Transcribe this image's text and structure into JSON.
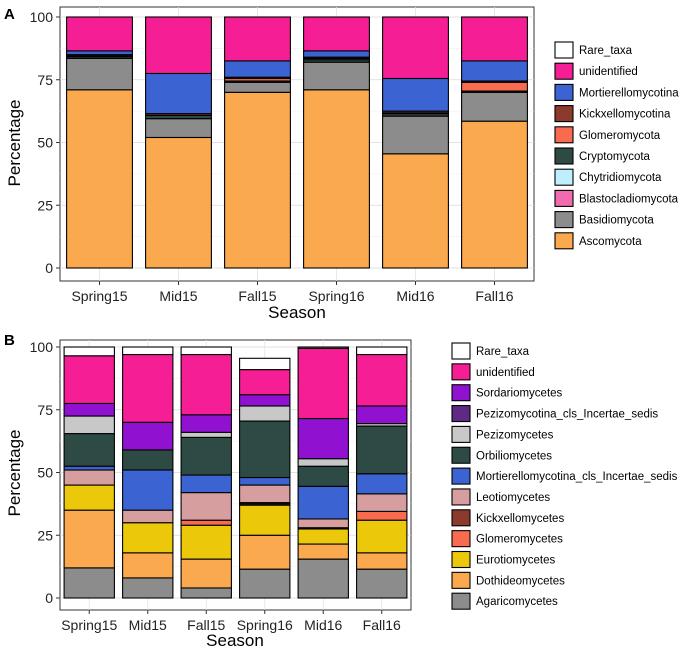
{
  "chart_data": [
    {
      "type": "bar",
      "stacked": true,
      "panel_label": "A",
      "title": "",
      "xlabel": "Season",
      "ylabel": "Percentage",
      "ylim": [
        0,
        100
      ],
      "yticks": [
        0,
        25,
        50,
        75,
        100
      ],
      "grid": true,
      "legend_position": "right",
      "categories": [
        "Spring15",
        "Mid15",
        "Fall15",
        "Spring16",
        "Mid16",
        "Fall16"
      ],
      "series": [
        {
          "name": "Ascomycota",
          "color": "#FBA94E",
          "values": [
            71,
            52,
            70,
            71,
            45.5,
            58.5
          ]
        },
        {
          "name": "Basidiomycota",
          "color": "#8C8C8C",
          "values": [
            12.5,
            7.5,
            4,
            11,
            15,
            11.5
          ]
        },
        {
          "name": "Blastocladiomycota",
          "color": "#F26BB1",
          "values": [
            0,
            0,
            0,
            0,
            0,
            0
          ]
        },
        {
          "name": "Chytridiomycota",
          "color": "#BFEFFF",
          "values": [
            0,
            0,
            0,
            0,
            0,
            0
          ]
        },
        {
          "name": "Cryptomycota",
          "color": "#2E4A45",
          "values": [
            0.7,
            1.3,
            0.5,
            1,
            1,
            0.5
          ]
        },
        {
          "name": "Glomeromycota",
          "color": "#F86B4E",
          "values": [
            0.3,
            0,
            1,
            0.5,
            0.3,
            3.5
          ]
        },
        {
          "name": "Kickxellomycotina",
          "color": "#8B3A2B",
          "values": [
            0.5,
            0.7,
            0.5,
            0.5,
            0.7,
            0.5
          ]
        },
        {
          "name": "Mortierellomycotina",
          "color": "#3B63D1",
          "values": [
            1.5,
            16,
            6.5,
            2.5,
            13,
            8
          ]
        },
        {
          "name": "unidentified",
          "color": "#F61E95",
          "values": [
            13.5,
            22.5,
            17.5,
            13.5,
            24.5,
            17.5
          ]
        },
        {
          "name": "Rare_taxa",
          "color": "#FFFFFF",
          "values": [
            0,
            0,
            0,
            0,
            0,
            0
          ]
        }
      ],
      "legend_order": [
        "Rare_taxa",
        "unidentified",
        "Mortierellomycotina",
        "Kickxellomycotina",
        "Glomeromycota",
        "Cryptomycota",
        "Chytridiomycota",
        "Blastocladiomycota",
        "Basidiomycota",
        "Ascomycota"
      ]
    },
    {
      "type": "bar",
      "stacked": true,
      "panel_label": "B",
      "title": "",
      "xlabel": "Season",
      "ylabel": "Percentage",
      "ylim": [
        0,
        100
      ],
      "yticks": [
        0,
        25,
        50,
        75,
        100
      ],
      "grid": true,
      "legend_position": "right",
      "categories": [
        "Spring15",
        "Mid15",
        "Fall15",
        "Spring16",
        "Mid16",
        "Fall16"
      ],
      "series": [
        {
          "name": "Agaricomycetes",
          "color": "#8C8C8C",
          "values": [
            12,
            8,
            4,
            11.5,
            15.5,
            11.5
          ]
        },
        {
          "name": "Dothideomycetes",
          "color": "#FBA94E",
          "values": [
            23,
            10,
            11.5,
            13.5,
            6,
            6.5
          ]
        },
        {
          "name": "Eurotiomycetes",
          "color": "#EBC90A",
          "values": [
            10,
            12,
            13.5,
            12,
            6,
            13
          ]
        },
        {
          "name": "Glomeromycetes",
          "color": "#F86B4E",
          "values": [
            0,
            0,
            2,
            0.5,
            0,
            3.5
          ]
        },
        {
          "name": "Kickxellomycetes",
          "color": "#8B3A2B",
          "values": [
            0,
            0,
            0,
            0.5,
            0.5,
            0
          ]
        },
        {
          "name": "Leotiomycetes",
          "color": "#D69E9E",
          "values": [
            6,
            5,
            11,
            7,
            3.5,
            7
          ]
        },
        {
          "name": "Mortierellomycotina_cls_Incertae_sedis",
          "color": "#3B63D1",
          "values": [
            1.5,
            16,
            7,
            3,
            13,
            8
          ]
        },
        {
          "name": "Orbiliomycetes",
          "color": "#2E4A45",
          "values": [
            13,
            8,
            15,
            22.5,
            8,
            19
          ]
        },
        {
          "name": "Pezizomycetes",
          "color": "#C8C8C8",
          "values": [
            7,
            0,
            2,
            6,
            3,
            1
          ]
        },
        {
          "name": "Pezizomycotina_cls_Incertae_sedis",
          "color": "#5E2A85",
          "values": [
            0,
            0,
            0,
            0,
            0,
            0
          ]
        },
        {
          "name": "Sordariomycetes",
          "color": "#9012D0",
          "values": [
            5,
            11,
            7,
            4.5,
            16,
            7
          ]
        },
        {
          "name": "unidentified",
          "color": "#F61E95",
          "values": [
            19,
            27,
            24,
            10,
            28,
            20.5
          ]
        },
        {
          "name": "Rare_taxa",
          "color": "#FFFFFF",
          "values": [
            3.5,
            3,
            3,
            4.5,
            0.5,
            3
          ]
        }
      ],
      "legend_order": [
        "Rare_taxa",
        "unidentified",
        "Sordariomycetes",
        "Pezizomycotina_cls_Incertae_sedis",
        "Pezizomycetes",
        "Orbiliomycetes",
        "Mortierellomycotina_cls_Incertae_sedis",
        "Leotiomycetes",
        "Kickxellomycetes",
        "Glomeromycetes",
        "Eurotiomycetes",
        "Dothideomycetes",
        "Agaricomycetes"
      ]
    }
  ]
}
